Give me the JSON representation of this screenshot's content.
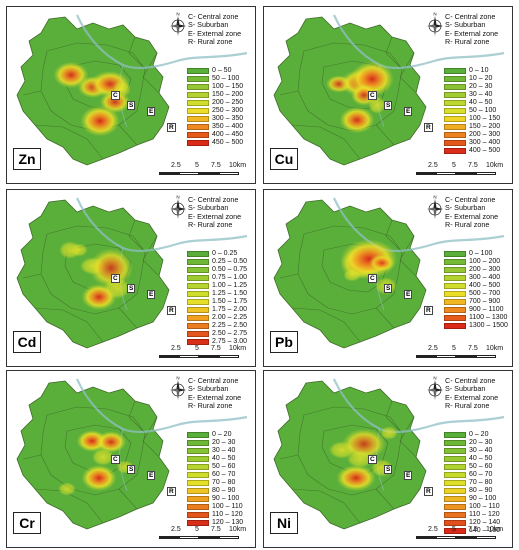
{
  "zone_legend": [
    "C- Central zone",
    "S- Suburban",
    "E- External zone",
    "R- Rural zone"
  ],
  "zone_labels": {
    "central": "C",
    "suburban": "S",
    "external": "E",
    "rural": "R"
  },
  "scale": {
    "labels": [
      "2.5",
      "5",
      "7.5",
      "10km"
    ]
  },
  "compass": {
    "letter": "N"
  },
  "panels": [
    {
      "element": "Zn",
      "legend": [
        "0 – 50",
        "50 – 100",
        "100 – 150",
        "150 – 200",
        "200 – 250",
        "250 – 300",
        "300 – 350",
        "350 – 400",
        "400 – 450",
        "450 – 500"
      ],
      "colors": [
        "#5aae3a",
        "#76bb36",
        "#94c733",
        "#b3d22f",
        "#d1dd2c",
        "#ecde28",
        "#f2b824",
        "#ee8a20",
        "#e65a1c",
        "#db2a18"
      ]
    },
    {
      "element": "Cu",
      "legend": [
        "0 – 10",
        "10 – 20",
        "20 – 30",
        "30 – 40",
        "40 – 50",
        "50 – 100",
        "100 – 150",
        "150 – 200",
        "200 – 300",
        "300 – 400",
        "400 – 500"
      ],
      "colors": [
        "#5aae3a",
        "#71b936",
        "#89c334",
        "#a2cd31",
        "#bdd72e",
        "#d7df2b",
        "#eed527",
        "#f0ad23",
        "#ec8320",
        "#e4581c",
        "#da2c18"
      ]
    },
    {
      "element": "Cd",
      "legend": [
        "0 – 0.25",
        "0.25 – 0.50",
        "0.50 – 0.75",
        "0.75 – 1.00",
        "1.00 – 1.25",
        "1.25 – 1.50",
        "1.50 – 1.75",
        "1.75 – 2.00",
        "2.00 – 2.25",
        "2.25 – 2.50",
        "2.50 – 2.75",
        "2.75 – 3.00"
      ],
      "colors": [
        "#5aae3a",
        "#6fb837",
        "#85c234",
        "#9dcc31",
        "#b6d52e",
        "#cfdd2b",
        "#e6df28",
        "#efc425",
        "#f0a122",
        "#eb7d1f",
        "#e3571c",
        "#d92e18"
      ]
    },
    {
      "element": "Pb",
      "legend": [
        "0 – 100",
        "100 – 200",
        "200 – 300",
        "300 – 400",
        "400 – 500",
        "500 – 700",
        "700 – 900",
        "900 – 1100",
        "1100 – 1300",
        "1300 – 1500"
      ],
      "colors": [
        "#5aae3a",
        "#76bb36",
        "#94c733",
        "#b3d22f",
        "#d1dd2c",
        "#ecde28",
        "#f2b824",
        "#ee8a20",
        "#e65a1c",
        "#db2a18"
      ]
    },
    {
      "element": "Cr",
      "legend": [
        "0 – 20",
        "20 – 30",
        "30 – 40",
        "40 – 50",
        "50 – 60",
        "60 – 70",
        "70 – 80",
        "80 – 90",
        "90 – 100",
        "100 – 110",
        "110 – 120",
        "120 – 130"
      ],
      "colors": [
        "#5aae3a",
        "#6fb837",
        "#85c234",
        "#9dcc31",
        "#b6d52e",
        "#cfdd2b",
        "#e6df28",
        "#efc425",
        "#f0a122",
        "#eb7d1f",
        "#e3571c",
        "#d92e18"
      ]
    },
    {
      "element": "Ni",
      "legend": [
        "0 – 20",
        "20 – 30",
        "30 – 40",
        "40 – 50",
        "50 – 60",
        "60 – 70",
        "70 – 80",
        "80 – 90",
        "90 – 100",
        "100 – 110",
        "110 – 120",
        "120 – 140",
        "140 – 160"
      ],
      "colors": [
        "#5aae3a",
        "#6db737",
        "#82c135",
        "#98ca32",
        "#afd32f",
        "#c7db2c",
        "#dedf29",
        "#ecd126",
        "#f0b523",
        "#ee9420",
        "#ea721e",
        "#e34f1b",
        "#d92c18"
      ]
    }
  ]
}
